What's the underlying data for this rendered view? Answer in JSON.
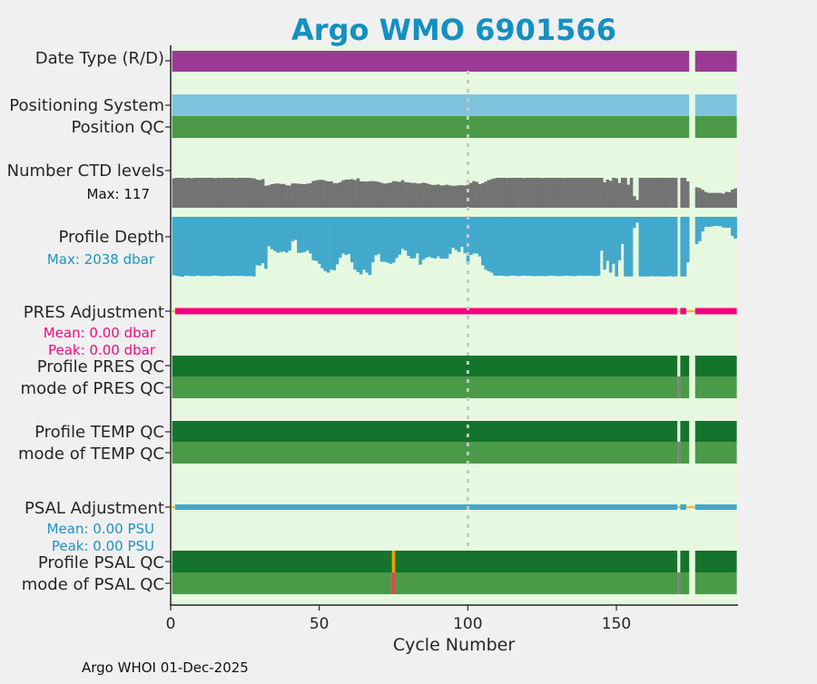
{
  "title": "Argo WMO 6901566",
  "footer": "Argo WHOI 01-Dec-2025",
  "colors": {
    "title": "#1590c2",
    "background": "#e6f9e0",
    "date_type": "#9b3a96",
    "positioning": "#7ec4de",
    "qc_good": "#4a9a48",
    "qc_profile_good": "#15742b",
    "qc_mode_missing": "#808080",
    "ctd": "#737373",
    "depth": "#42a9cc",
    "pres_adj": "#f0057f",
    "psal_adj": "#42a9cc",
    "unadjusted": "#fbb33a",
    "qc_orange": "#f5a000",
    "qc_red": "#f0404a",
    "ref_line": "#c8c8c8"
  },
  "chart_data": {
    "type": "bar",
    "xlabel": "Cycle Number",
    "xlim": [
      0,
      191
    ],
    "xticks": [
      0,
      50,
      100,
      150
    ],
    "reference_cycle": 100,
    "rows": {
      "date_type": {
        "label": "Date Type (R/D)",
        "segments": [
          {
            "from": 1,
            "to": 174,
            "color": "date_type"
          },
          {
            "from": 177,
            "to": 190,
            "color": "date_type"
          }
        ]
      },
      "positioning_system": {
        "label": "Positioning System",
        "segments": [
          {
            "from": 1,
            "to": 174,
            "color": "positioning"
          },
          {
            "from": 177,
            "to": 190,
            "color": "positioning"
          }
        ]
      },
      "position_qc": {
        "label": "Position QC",
        "segments": [
          {
            "from": 1,
            "to": 174,
            "color": "qc_good"
          },
          {
            "from": 177,
            "to": 190,
            "color": "qc_good"
          }
        ]
      },
      "profile_pres_qc": {
        "label": "Profile PRES QC",
        "segments": [
          {
            "from": 1,
            "to": 170,
            "color": "qc_profile_good"
          },
          {
            "from": 172,
            "to": 174,
            "color": "qc_profile_good"
          },
          {
            "from": 177,
            "to": 190,
            "color": "qc_profile_good"
          }
        ]
      },
      "mode_pres_qc": {
        "label": "mode of PRES QC",
        "segments": [
          {
            "from": 1,
            "to": 170,
            "color": "qc_good"
          },
          {
            "from": 171,
            "to": 171,
            "color": "qc_mode_missing"
          },
          {
            "from": 172,
            "to": 174,
            "color": "qc_good"
          },
          {
            "from": 177,
            "to": 190,
            "color": "qc_good"
          }
        ]
      },
      "profile_temp_qc": {
        "label": "Profile TEMP QC",
        "segments": [
          {
            "from": 1,
            "to": 170,
            "color": "qc_profile_good"
          },
          {
            "from": 172,
            "to": 174,
            "color": "qc_profile_good"
          },
          {
            "from": 177,
            "to": 190,
            "color": "qc_profile_good"
          }
        ]
      },
      "mode_temp_qc": {
        "label": "mode of TEMP QC",
        "segments": [
          {
            "from": 1,
            "to": 170,
            "color": "qc_good"
          },
          {
            "from": 171,
            "to": 171,
            "color": "qc_mode_missing"
          },
          {
            "from": 172,
            "to": 174,
            "color": "qc_good"
          },
          {
            "from": 177,
            "to": 190,
            "color": "qc_good"
          }
        ]
      },
      "profile_psal_qc": {
        "label": "Profile PSAL QC",
        "segments": [
          {
            "from": 1,
            "to": 74,
            "color": "qc_profile_good"
          },
          {
            "from": 75,
            "to": 75,
            "color": "qc_orange"
          },
          {
            "from": 76,
            "to": 170,
            "color": "qc_profile_good"
          },
          {
            "from": 172,
            "to": 174,
            "color": "qc_profile_good"
          },
          {
            "from": 177,
            "to": 190,
            "color": "qc_profile_good"
          }
        ]
      },
      "mode_psal_qc": {
        "label": "mode of PSAL QC",
        "segments": [
          {
            "from": 1,
            "to": 74,
            "color": "qc_good"
          },
          {
            "from": 75,
            "to": 75,
            "color": "qc_red"
          },
          {
            "from": 76,
            "to": 170,
            "color": "qc_good"
          },
          {
            "from": 171,
            "to": 171,
            "color": "qc_mode_missing"
          },
          {
            "from": 172,
            "to": 174,
            "color": "qc_good"
          },
          {
            "from": 177,
            "to": 190,
            "color": "qc_good"
          }
        ]
      }
    },
    "pres_adjustment": {
      "label": "PRES Adjustment",
      "mean": "Mean: 0.00 dbar",
      "peak": "Peak: 0.00 dbar",
      "segments": [
        {
          "from": 1,
          "to": 1,
          "color": "unadjusted"
        },
        {
          "from": 2,
          "to": 170,
          "color": "pres_adj"
        },
        {
          "from": 171,
          "to": 171,
          "color": "unadjusted"
        },
        {
          "from": 172,
          "to": 173,
          "color": "pres_adj"
        },
        {
          "from": 174,
          "to": 176,
          "color": "unadjusted"
        },
        {
          "from": 177,
          "to": 190,
          "color": "pres_adj"
        }
      ]
    },
    "psal_adjustment": {
      "label": "PSAL Adjustment",
      "mean": "Mean: 0.00 PSU",
      "peak": "Peak: 0.00 PSU",
      "segments": [
        {
          "from": 1,
          "to": 1,
          "color": "unadjusted"
        },
        {
          "from": 2,
          "to": 170,
          "color": "psal_adj"
        },
        {
          "from": 171,
          "to": 171,
          "color": "unadjusted"
        },
        {
          "from": 172,
          "to": 173,
          "color": "psal_adj"
        },
        {
          "from": 174,
          "to": 176,
          "color": "unadjusted"
        },
        {
          "from": 177,
          "to": 190,
          "color": "psal_adj"
        }
      ]
    },
    "ctd_levels": {
      "label": "Number CTD levels",
      "max_label": "Max: 117",
      "max": 117,
      "values": [
        115,
        117,
        117,
        117,
        116,
        117,
        115,
        117,
        117,
        117,
        117,
        117,
        117,
        117,
        116,
        117,
        116,
        117,
        117,
        117,
        117,
        116,
        117,
        117,
        117,
        117,
        116,
        115,
        110,
        108,
        112,
        86,
        88,
        92,
        94,
        95,
        93,
        93,
        88,
        87,
        95,
        95,
        94,
        93,
        92,
        94,
        96,
        105,
        107,
        109,
        109,
        106,
        103,
        103,
        96,
        96,
        99,
        107,
        110,
        110,
        112,
        108,
        115,
        103,
        103,
        102,
        104,
        104,
        103,
        101,
        97,
        94,
        96,
        98,
        104,
        103,
        101,
        108,
        100,
        99,
        97,
        97,
        95,
        95,
        98,
        96,
        92,
        89,
        89,
        91,
        87,
        88,
        90,
        87,
        86,
        86,
        88,
        88,
        87,
        90,
        97,
        104,
        101,
        92,
        96,
        102,
        108,
        112,
        115,
        117,
        117,
        117,
        116,
        117,
        117,
        117,
        117,
        117,
        116,
        117,
        117,
        117,
        117,
        117,
        116,
        117,
        117,
        117,
        117,
        117,
        117,
        116,
        117,
        117,
        117,
        117,
        117,
        117,
        117,
        117,
        117,
        117,
        117,
        117,
        117,
        100,
        110,
        105,
        117,
        115,
        97,
        117,
        117,
        90,
        117,
        45,
        30,
        117,
        117,
        117,
        117,
        117,
        117,
        117,
        117,
        117,
        117,
        117,
        117,
        117,
        null,
        117,
        117,
        103,
        null,
        null,
        80,
        77,
        70,
        62,
        58,
        58,
        58,
        58,
        58,
        55,
        62,
        61,
        71,
        76
      ]
    },
    "profile_depth": {
      "label": "Profile Depth",
      "max_label": "Max: 2038 dbar",
      "max": 2038,
      "unit": "dbar",
      "values": [
        1990,
        2010,
        2025,
        2038,
        2000,
        2010,
        2020,
        2020,
        2000,
        2015,
        2015,
        2020,
        2020,
        2010,
        2000,
        2015,
        2020,
        2020,
        2010,
        2015,
        2005,
        2015,
        2015,
        2010,
        2020,
        2020,
        2015,
        2030,
        1650,
        1660,
        1580,
        1770,
        1000,
        1100,
        1160,
        1220,
        1200,
        1180,
        1220,
        1150,
        830,
        780,
        1230,
        1220,
        1200,
        1150,
        1250,
        1480,
        1500,
        1600,
        1750,
        1850,
        1900,
        1800,
        1820,
        1620,
        1400,
        1250,
        1300,
        1260,
        1550,
        1800,
        1880,
        1960,
        1800,
        1900,
        1980,
        1550,
        1310,
        1260,
        1530,
        1530,
        1560,
        1600,
        1560,
        1400,
        1290,
        1090,
        1150,
        1330,
        1420,
        1410,
        1250,
        1630,
        1460,
        1390,
        1360,
        1400,
        1420,
        1350,
        1420,
        1420,
        1420,
        1260,
        1050,
        1130,
        1200,
        1020,
        1240,
        1600,
        1300,
        1250,
        1250,
        1350,
        1650,
        1800,
        1850,
        1900,
        2000,
        2010,
        2000,
        2010,
        2020,
        2010,
        2000,
        2010,
        2020,
        2010,
        2000,
        2010,
        2010,
        2020,
        2020,
        2015,
        2010,
        2020,
        2010,
        2000,
        2010,
        2020,
        2020,
        2010,
        2000,
        2010,
        2020,
        2020,
        2010,
        2000,
        2010,
        2010,
        2000,
        2010,
        2020,
        2000,
        1150,
        1800,
        1500,
        1900,
        1600,
        2030,
        1480,
        920,
        2030,
        2030,
        2030,
        380,
        200,
        2030,
        2030,
        2030,
        2030,
        2020,
        2030,
        2020,
        2030,
        2030,
        2030,
        2020,
        2030,
        2030,
        null,
        2030,
        2030,
        1550,
        null,
        null,
        930,
        830,
        500,
        340,
        340,
        330,
        310,
        310,
        320,
        370,
        370,
        370,
        650,
        740
      ]
    }
  }
}
